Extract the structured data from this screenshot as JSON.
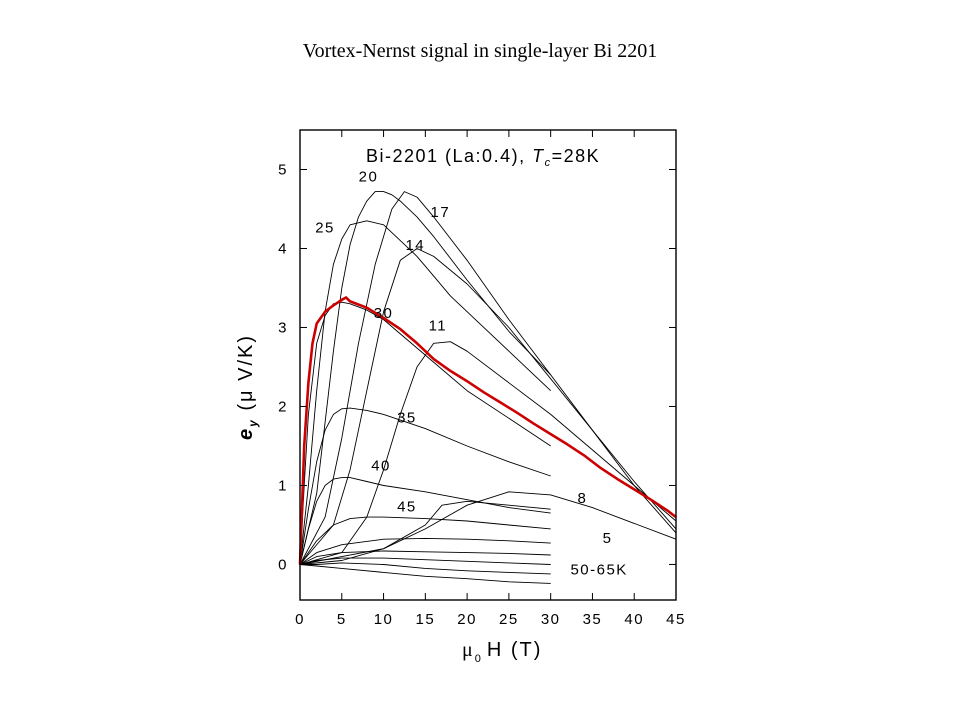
{
  "title": "Vortex-Nernst signal in single-layer Bi 2201",
  "chart_data": {
    "type": "line",
    "annotation": {
      "prefix": "Bi-2201 (La:0.4), ",
      "T": "T",
      "c": "c",
      "suffix": "=28K"
    },
    "xlabel": {
      "mu": "μ",
      "sub0": "0",
      "rest": "H  (T)"
    },
    "ylabel": {
      "e": "e",
      "y": "y",
      "rest": " (μ V/K)"
    },
    "xlim": [
      0,
      45
    ],
    "ylim": [
      -0.45,
      5.5
    ],
    "xticks": [
      0,
      5,
      10,
      15,
      20,
      25,
      30,
      35,
      40,
      45
    ],
    "yticks": [
      0,
      1,
      2,
      3,
      4,
      5
    ],
    "highlight_color": "#cc0000",
    "line_color": "#000000",
    "series": [
      {
        "label": "8",
        "highlight": true,
        "x": [
          0,
          0.5,
          1,
          1.5,
          2,
          3,
          4,
          5,
          5.5,
          6,
          8,
          10,
          12,
          14,
          16,
          18,
          20,
          22,
          24,
          26,
          28,
          30,
          32,
          34,
          36,
          38,
          40,
          42,
          44,
          45
        ],
        "y": [
          0,
          1.5,
          2.3,
          2.8,
          3.05,
          3.2,
          3.28,
          3.35,
          3.38,
          3.33,
          3.25,
          3.12,
          2.98,
          2.8,
          2.6,
          2.45,
          2.32,
          2.18,
          2.05,
          1.92,
          1.78,
          1.65,
          1.52,
          1.38,
          1.22,
          1.08,
          0.95,
          0.82,
          0.68,
          0.6
        ]
      },
      {
        "label": "5",
        "x": [
          0,
          5,
          10,
          15,
          20,
          25,
          30,
          35,
          40,
          45
        ],
        "y": [
          0,
          0.05,
          0.2,
          0.45,
          0.75,
          0.92,
          0.88,
          0.72,
          0.52,
          0.32
        ]
      },
      {
        "label": "11",
        "x": [
          0,
          5,
          8,
          10,
          12,
          14,
          16,
          18,
          20,
          25,
          30,
          35,
          40,
          45
        ],
        "y": [
          0,
          0.15,
          0.6,
          1.2,
          1.9,
          2.5,
          2.8,
          2.82,
          2.7,
          2.3,
          1.9,
          1.45,
          1.0,
          0.55
        ]
      },
      {
        "label": "14",
        "x": [
          0,
          4,
          6,
          8,
          10,
          12,
          14,
          16,
          20,
          25,
          30,
          35,
          40,
          45
        ],
        "y": [
          0,
          0.5,
          1.2,
          2.2,
          3.2,
          3.85,
          4.0,
          3.9,
          3.55,
          3.0,
          2.35,
          1.7,
          1.05,
          0.45
        ]
      },
      {
        "label": "17",
        "x": [
          0,
          3,
          5,
          7,
          9,
          11,
          12.5,
          14,
          16,
          20,
          25,
          30,
          35,
          40,
          45
        ],
        "y": [
          0,
          0.6,
          1.6,
          2.8,
          3.8,
          4.5,
          4.72,
          4.65,
          4.4,
          3.85,
          3.1,
          2.4,
          1.7,
          1.0,
          0.4
        ]
      },
      {
        "label": "20",
        "x": [
          0,
          2,
          3,
          4,
          5,
          6,
          7,
          8,
          9,
          10,
          11,
          12,
          14,
          16,
          20,
          25,
          30
        ],
        "y": [
          0,
          0.9,
          1.8,
          2.7,
          3.5,
          4.05,
          4.4,
          4.6,
          4.72,
          4.72,
          4.68,
          4.6,
          4.4,
          4.15,
          3.6,
          2.95,
          2.4
        ]
      },
      {
        "label": "25",
        "x": [
          0,
          1,
          2,
          3,
          4,
          5,
          6,
          8,
          10,
          12,
          14,
          16,
          18,
          20,
          25,
          30
        ],
        "y": [
          0,
          1.0,
          2.2,
          3.2,
          3.8,
          4.12,
          4.3,
          4.35,
          4.3,
          4.1,
          3.9,
          3.65,
          3.4,
          3.2,
          2.7,
          2.2
        ]
      },
      {
        "label": "30",
        "x": [
          0,
          0.5,
          1,
          2,
          3,
          4,
          5,
          6,
          8,
          10,
          15,
          20,
          25,
          30
        ],
        "y": [
          0,
          1.0,
          1.9,
          2.8,
          3.15,
          3.3,
          3.32,
          3.3,
          3.22,
          3.1,
          2.65,
          2.2,
          1.85,
          1.5
        ]
      },
      {
        "label": "35",
        "x": [
          0,
          1,
          2,
          3,
          4,
          5,
          6,
          8,
          10,
          15,
          20,
          25,
          30
        ],
        "y": [
          0,
          0.7,
          1.3,
          1.7,
          1.9,
          1.97,
          1.98,
          1.95,
          1.9,
          1.72,
          1.5,
          1.3,
          1.12
        ]
      },
      {
        "label": "40",
        "x": [
          0,
          1,
          2,
          3,
          4,
          5,
          6,
          8,
          10,
          15,
          20,
          25,
          30
        ],
        "y": [
          0,
          0.45,
          0.8,
          1.0,
          1.08,
          1.1,
          1.1,
          1.05,
          1.0,
          0.92,
          0.82,
          0.72,
          0.65
        ]
      },
      {
        "label": "45",
        "x": [
          0,
          2,
          4,
          6,
          8,
          10,
          15,
          20,
          25,
          30
        ],
        "y": [
          0,
          0.3,
          0.5,
          0.58,
          0.6,
          0.6,
          0.58,
          0.55,
          0.5,
          0.45
        ]
      },
      {
        "label": "50-65K",
        "x": [
          0,
          2,
          5,
          10,
          15,
          20,
          25,
          30
        ],
        "y": [
          0,
          0.15,
          0.25,
          0.32,
          0.33,
          0.32,
          0.3,
          0.27
        ]
      },
      {
        "label": "",
        "x": [
          0,
          2,
          5,
          10,
          15,
          20,
          25,
          30
        ],
        "y": [
          0,
          0.1,
          0.15,
          0.17,
          0.16,
          0.15,
          0.14,
          0.12
        ]
      },
      {
        "label": "",
        "x": [
          0,
          2,
          5,
          10,
          15,
          20,
          25,
          30
        ],
        "y": [
          0,
          0.05,
          0.08,
          0.08,
          0.06,
          0.04,
          0.02,
          0.0
        ]
      },
      {
        "label": "",
        "x": [
          0,
          2,
          5,
          10,
          15,
          20,
          25,
          30
        ],
        "y": [
          0,
          0.0,
          0.02,
          0.0,
          -0.05,
          -0.08,
          -0.1,
          -0.12
        ]
      },
      {
        "label": "",
        "x": [
          0,
          2,
          5,
          10,
          15,
          20,
          25,
          30
        ],
        "y": [
          0,
          -0.02,
          -0.05,
          -0.1,
          -0.15,
          -0.18,
          -0.22,
          -0.24
        ]
      },
      {
        "label": "",
        "x": [
          0,
          5,
          10,
          15,
          17,
          20,
          25,
          30
        ],
        "y": [
          0,
          0.1,
          0.2,
          0.5,
          0.75,
          0.8,
          0.75,
          0.7
        ]
      }
    ],
    "curve_labels": [
      {
        "text": "20",
        "x": 8.2,
        "y": 4.85
      },
      {
        "text": "17",
        "x": 16.8,
        "y": 4.4
      },
      {
        "text": "25",
        "x": 3.0,
        "y": 4.2
      },
      {
        "text": "14",
        "x": 13.8,
        "y": 3.98
      },
      {
        "text": "30",
        "x": 10.0,
        "y": 3.12
      },
      {
        "text": "11",
        "x": 16.5,
        "y": 2.96
      },
      {
        "text": "35",
        "x": 12.8,
        "y": 1.8
      },
      {
        "text": "40",
        "x": 9.7,
        "y": 1.19
      },
      {
        "text": "45",
        "x": 12.8,
        "y": 0.67
      },
      {
        "text": "8",
        "x": 33.8,
        "y": 0.78
      },
      {
        "text": "5",
        "x": 36.8,
        "y": 0.27
      },
      {
        "text": "50-65K",
        "x": 35.8,
        "y": -0.13
      }
    ]
  }
}
